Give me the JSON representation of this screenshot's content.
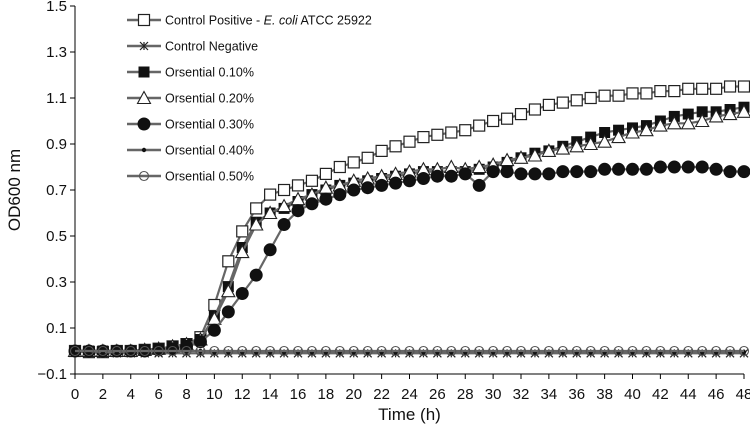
{
  "chart_data": {
    "type": "line",
    "xlabel": "Time (h)",
    "ylabel": "OD600 nm",
    "xlim": [
      0,
      48
    ],
    "ylim": [
      -0.1,
      1.5
    ],
    "xticks": [
      0,
      2,
      4,
      6,
      8,
      10,
      12,
      14,
      16,
      18,
      20,
      22,
      24,
      26,
      28,
      30,
      32,
      34,
      36,
      38,
      40,
      42,
      44,
      46,
      48
    ],
    "yticks": [
      -0.1,
      0.1,
      0.3,
      0.5,
      0.7,
      0.9,
      1.1,
      1.3,
      1.5
    ],
    "ytick_labels": [
      "−0.1",
      "0.1",
      "0.3",
      "0.5",
      "0.7",
      "0.9",
      "1.1",
      "1.3",
      "1.5"
    ],
    "legend_position": "top-left",
    "grid": false,
    "x": [
      0,
      1,
      2,
      3,
      4,
      5,
      6,
      7,
      8,
      9,
      10,
      11,
      12,
      13,
      14,
      15,
      16,
      17,
      18,
      19,
      20,
      21,
      22,
      23,
      24,
      25,
      26,
      27,
      28,
      29,
      30,
      31,
      32,
      33,
      34,
      35,
      36,
      37,
      38,
      39,
      40,
      41,
      42,
      43,
      44,
      45,
      46,
      47,
      48
    ],
    "series": [
      {
        "name": "Control Positive - ",
        "name_italic": "E. coli",
        "name_suffix": " ATCC 25922",
        "marker": "square-open",
        "values": [
          0.0,
          -0.005,
          -0.005,
          0.0,
          0.0,
          0.005,
          0.01,
          0.02,
          0.03,
          0.06,
          0.2,
          0.39,
          0.52,
          0.62,
          0.68,
          0.7,
          0.72,
          0.74,
          0.77,
          0.8,
          0.82,
          0.84,
          0.87,
          0.89,
          0.91,
          0.93,
          0.94,
          0.95,
          0.96,
          0.98,
          1.0,
          1.01,
          1.03,
          1.05,
          1.07,
          1.08,
          1.09,
          1.1,
          1.11,
          1.11,
          1.12,
          1.12,
          1.13,
          1.13,
          1.14,
          1.14,
          1.14,
          1.15,
          1.15
        ]
      },
      {
        "name": "Control Negative",
        "marker": "asterisk",
        "values": [
          0.0,
          -0.005,
          -0.01,
          -0.01,
          -0.01,
          -0.01,
          -0.01,
          -0.01,
          -0.01,
          -0.01,
          -0.01,
          -0.01,
          -0.01,
          -0.01,
          -0.01,
          -0.01,
          -0.01,
          -0.01,
          -0.01,
          -0.01,
          -0.01,
          -0.01,
          -0.01,
          -0.01,
          -0.01,
          -0.01,
          -0.01,
          -0.01,
          -0.01,
          -0.01,
          -0.01,
          -0.01,
          -0.01,
          -0.01,
          -0.01,
          -0.01,
          -0.01,
          -0.01,
          -0.01,
          -0.01,
          -0.01,
          -0.01,
          -0.01,
          -0.01,
          -0.01,
          -0.01,
          -0.01,
          -0.01,
          -0.01
        ]
      },
      {
        "name": "Orsential 0.10%",
        "marker": "square-filled",
        "values": [
          0.0,
          0.0,
          0.0,
          0.0,
          0.0,
          0.005,
          0.01,
          0.02,
          0.03,
          0.05,
          0.15,
          0.28,
          0.45,
          0.56,
          0.6,
          0.62,
          0.65,
          0.68,
          0.7,
          0.72,
          0.73,
          0.74,
          0.75,
          0.76,
          0.77,
          0.78,
          0.78,
          0.78,
          0.78,
          0.79,
          0.8,
          0.82,
          0.84,
          0.86,
          0.87,
          0.89,
          0.91,
          0.93,
          0.95,
          0.96,
          0.97,
          0.98,
          1.0,
          1.02,
          1.03,
          1.04,
          1.04,
          1.05,
          1.06
        ]
      },
      {
        "name": "Orsential 0.20%",
        "marker": "triangle-open",
        "values": [
          0.0,
          0.0,
          0.0,
          0.0,
          0.0,
          0.005,
          0.01,
          0.02,
          0.03,
          0.05,
          0.14,
          0.26,
          0.43,
          0.55,
          0.6,
          0.63,
          0.66,
          0.68,
          0.71,
          0.72,
          0.74,
          0.75,
          0.76,
          0.77,
          0.78,
          0.79,
          0.79,
          0.8,
          0.79,
          0.8,
          0.81,
          0.83,
          0.84,
          0.85,
          0.87,
          0.88,
          0.89,
          0.9,
          0.91,
          0.93,
          0.95,
          0.96,
          0.98,
          0.99,
          0.99,
          1.0,
          1.02,
          1.03,
          1.04
        ]
      },
      {
        "name": "Orsential 0.30%",
        "marker": "circle-filled",
        "values": [
          0.0,
          0.0,
          0.0,
          0.0,
          0.0,
          0.0,
          0.005,
          0.01,
          0.02,
          0.04,
          0.09,
          0.17,
          0.25,
          0.33,
          0.44,
          0.55,
          0.61,
          0.64,
          0.66,
          0.68,
          0.7,
          0.71,
          0.72,
          0.73,
          0.74,
          0.75,
          0.76,
          0.76,
          0.77,
          0.72,
          0.78,
          0.78,
          0.77,
          0.77,
          0.77,
          0.78,
          0.78,
          0.78,
          0.79,
          0.79,
          0.79,
          0.79,
          0.8,
          0.8,
          0.8,
          0.8,
          0.79,
          0.78,
          0.78
        ]
      },
      {
        "name": "Orsential 0.40%",
        "marker": "dot",
        "values": [
          0.0,
          0.0,
          -0.005,
          -0.005,
          0.0,
          0.0,
          0.0,
          0.0,
          0.0,
          0.0,
          -0.005,
          -0.005,
          -0.005,
          -0.005,
          -0.005,
          -0.005,
          -0.005,
          -0.005,
          -0.005,
          -0.005,
          -0.005,
          -0.005,
          -0.005,
          -0.005,
          -0.005,
          -0.005,
          -0.005,
          -0.005,
          -0.005,
          -0.005,
          -0.005,
          -0.005,
          -0.005,
          -0.005,
          -0.005,
          -0.005,
          -0.005,
          -0.005,
          -0.005,
          -0.005,
          -0.005,
          -0.005,
          -0.005,
          -0.005,
          -0.005,
          -0.005,
          -0.005,
          -0.005,
          -0.005
        ]
      },
      {
        "name": "Orsential 0.50%",
        "marker": "circle-open",
        "values": [
          0.0,
          0.0,
          0.0,
          0.0,
          0.0,
          0.0,
          0.0,
          0.0,
          0.0,
          0.0,
          0.0,
          0.0,
          0.0,
          0.0,
          0.0,
          0.0,
          0.0,
          0.0,
          0.0,
          0.0,
          0.0,
          0.0,
          0.0,
          0.0,
          0.0,
          0.0,
          0.0,
          0.0,
          0.0,
          0.0,
          0.0,
          0.0,
          0.0,
          0.0,
          0.0,
          0.0,
          0.0,
          0.0,
          0.0,
          0.0,
          0.0,
          0.0,
          0.0,
          0.0,
          0.0,
          0.0,
          0.0,
          0.0,
          0.0
        ]
      }
    ]
  }
}
